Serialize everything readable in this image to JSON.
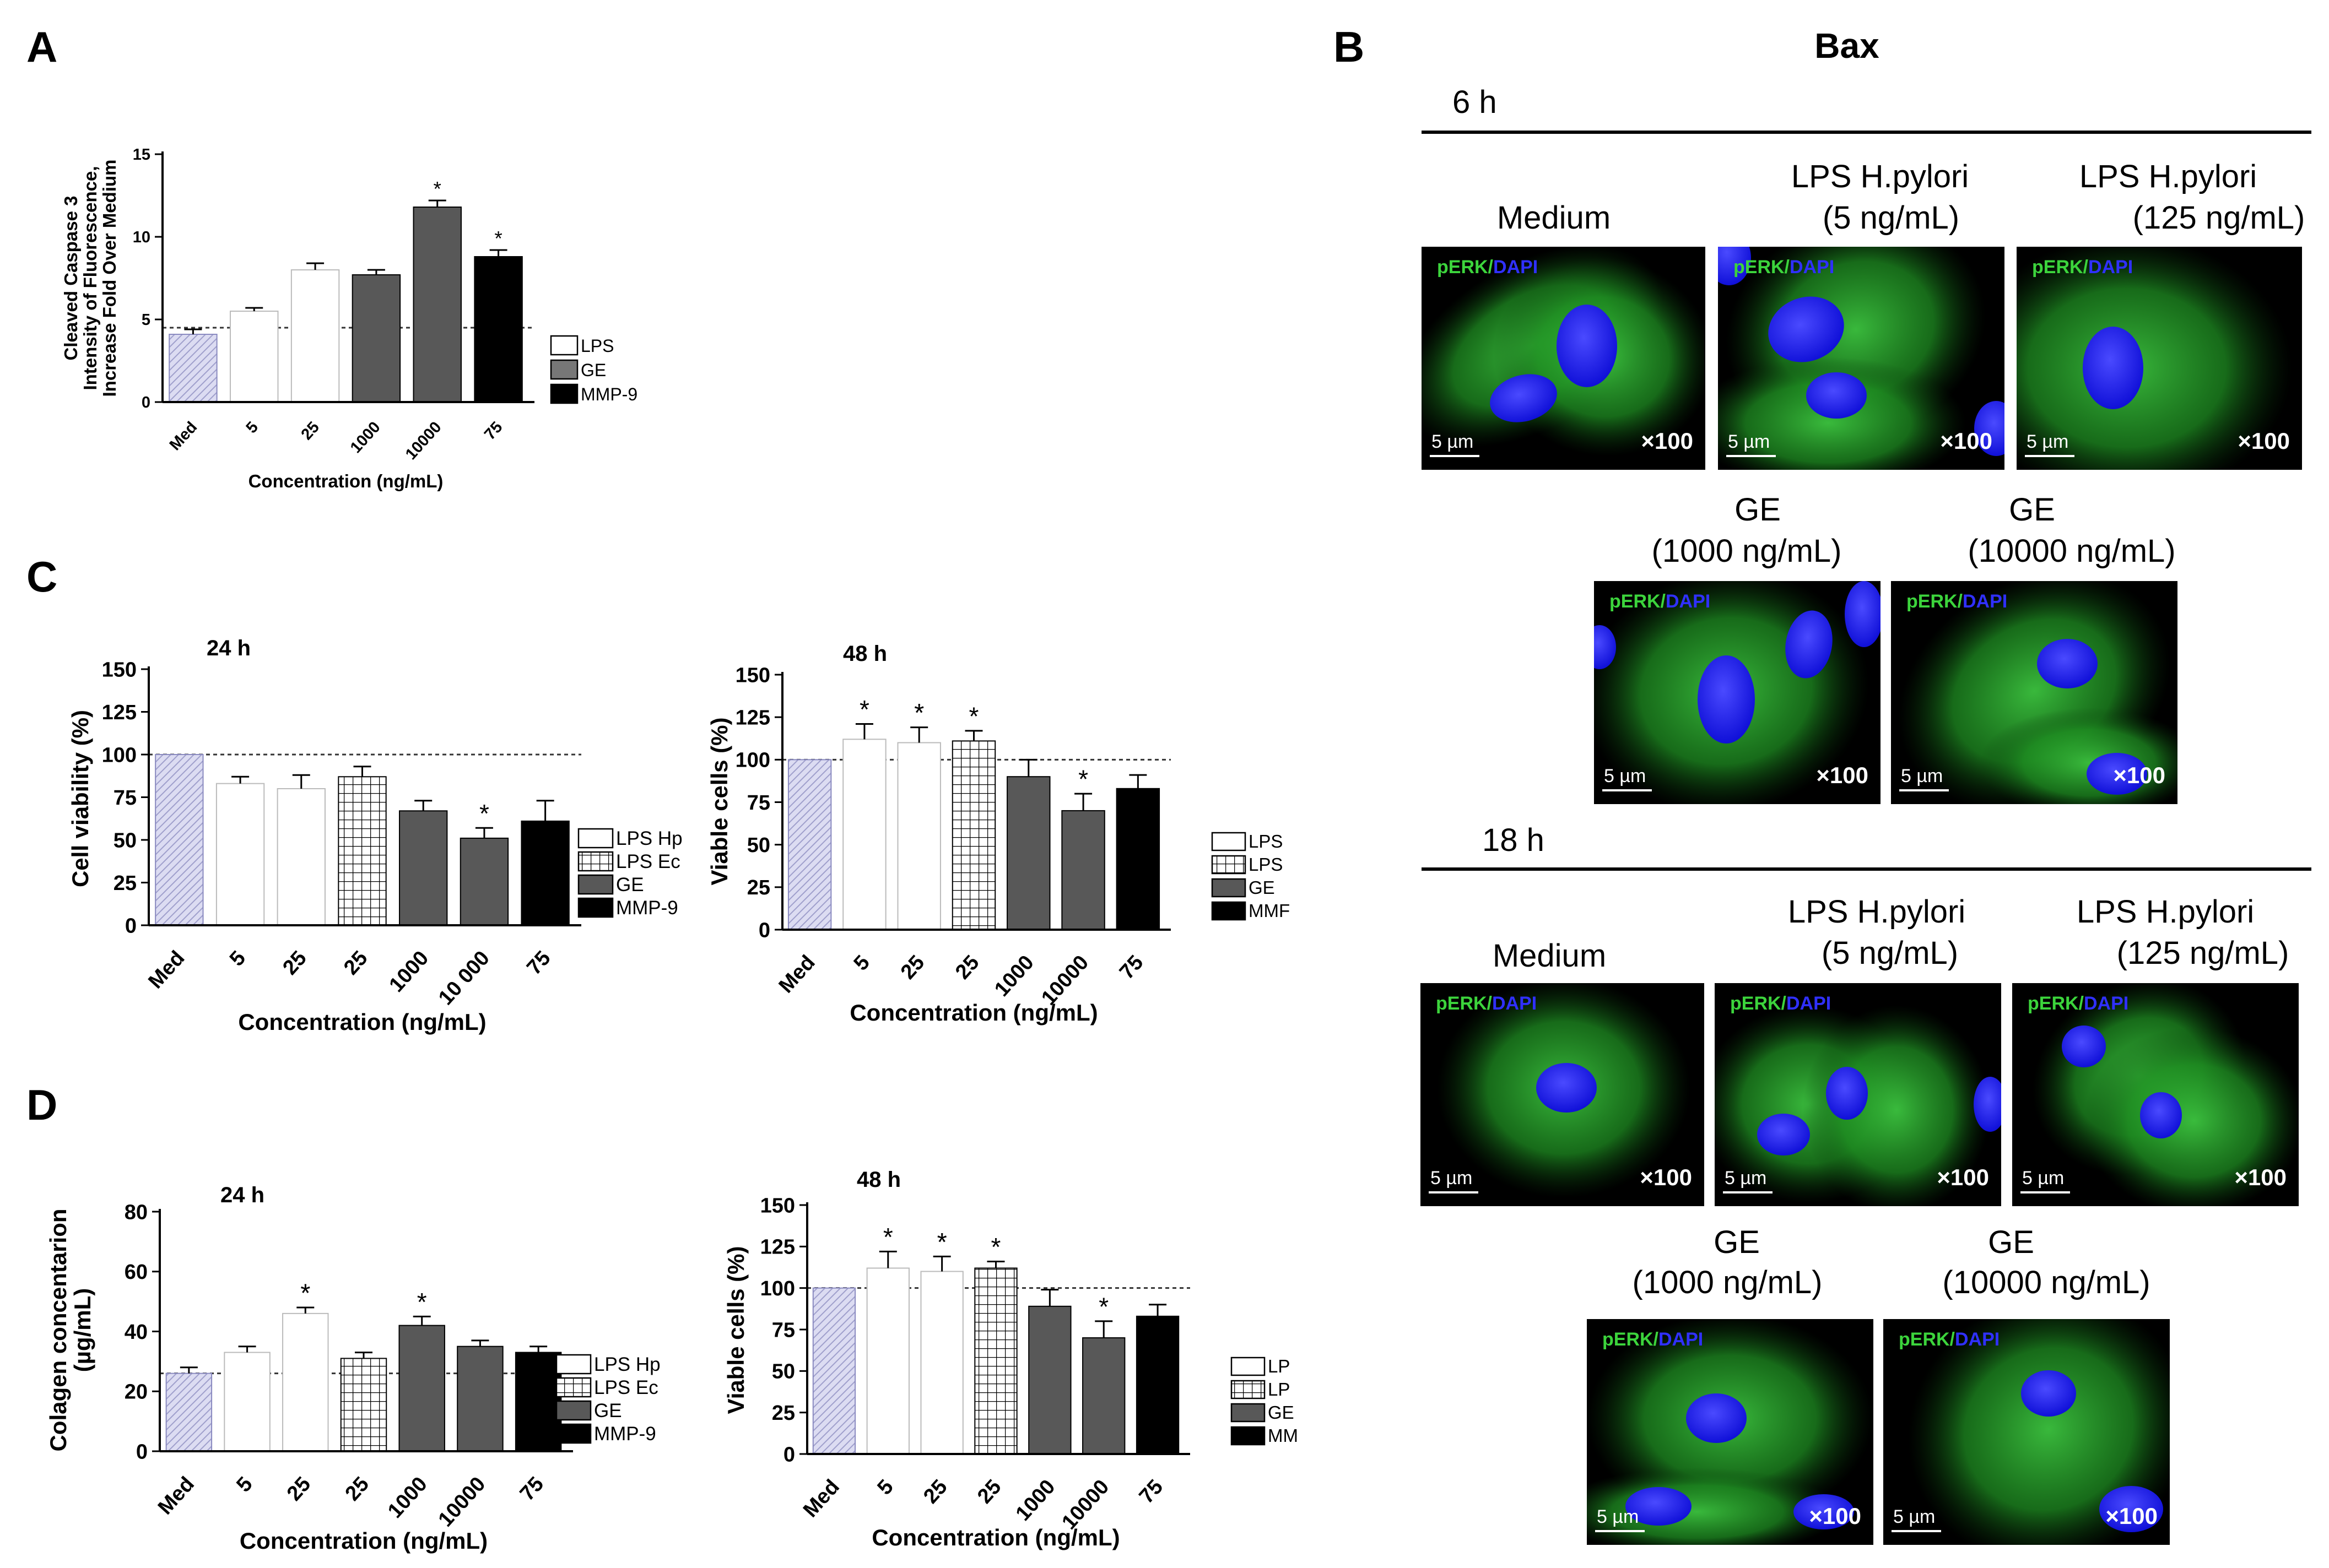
{
  "panel_letters": {
    "A": "A",
    "B": "B",
    "C": "C",
    "D": "D"
  },
  "micro": {
    "title": "Bax",
    "time_6h": "6 h",
    "time_18h": "18 h",
    "headers": {
      "medium": "Medium",
      "lps_5_l1": "LPS H.pylori",
      "lps_5_l2": "(5 ng/mL)",
      "lps_125_l1": "LPS H.pylori",
      "lps_125_l2": "(125 ng/mL)",
      "ge_1000_l1": "GE",
      "ge_1000_l2": "(1000 ng/mL)",
      "ge_10000_l1": "GE",
      "ge_10000_l2": "(10000 ng/mL)"
    },
    "stain_green": "pERK/",
    "stain_blue": "DAPI",
    "scale": "5 µm",
    "mag": "×100",
    "colors": {
      "background": "#000000",
      "cytoplasm": "#22a12a",
      "nucleus": "#1a1aff"
    }
  },
  "chart_data": [
    {
      "id": "A",
      "type": "bar",
      "ylabel_lines": [
        "Cleaved Caspase 3",
        "Intensity of Fluorescence,",
        "Increase Fold Over Medium"
      ],
      "xlabel": "Concentration (ng/mL)",
      "categories": [
        "Med",
        "5",
        "25",
        "1000",
        "10000",
        "75"
      ],
      "values": [
        4.1,
        5.5,
        8.0,
        7.7,
        11.8,
        8.8
      ],
      "errors": [
        0.3,
        0.2,
        0.4,
        0.3,
        0.4,
        0.4
      ],
      "groups": [
        "med",
        "lps",
        "lps",
        "ge",
        "ge",
        "mmp"
      ],
      "sig": [
        false,
        false,
        false,
        false,
        true,
        true
      ],
      "ylim": [
        0,
        15
      ],
      "yticks": [
        "0",
        "5",
        "10",
        "15"
      ],
      "ref_line": 4.5,
      "legend": [
        "LPS",
        "GE",
        "MMP-9"
      ]
    },
    {
      "id": "C24",
      "type": "bar",
      "title": "24 h",
      "ylabel": "Cell viability (%)",
      "xlabel": "Concentration (ng/mL)",
      "categories": [
        "Med",
        "5",
        "25",
        "25",
        "1000",
        "10 000",
        "75"
      ],
      "values": [
        100,
        83,
        80,
        87,
        67,
        51,
        61
      ],
      "errors": [
        0,
        4,
        8,
        6,
        6,
        6,
        12
      ],
      "groups": [
        "med",
        "lps",
        "lps",
        "lpsec",
        "ge",
        "ge",
        "mmp"
      ],
      "sig": [
        false,
        false,
        false,
        false,
        false,
        true,
        false
      ],
      "ylim": [
        0,
        150
      ],
      "yticks": [
        "0",
        "25",
        "50",
        "75",
        "100",
        "125",
        "150"
      ],
      "ref_line": 100,
      "legend": [
        "LPS Hp",
        "LPS Ec",
        "GE",
        "MMP-9"
      ]
    },
    {
      "id": "C48",
      "type": "bar",
      "title": "48 h",
      "ylabel": "Viable cells (%)",
      "xlabel": "Concentration (ng/mL)",
      "categories": [
        "Med",
        "5",
        "25",
        "25",
        "1000",
        "10000",
        "75"
      ],
      "values": [
        100,
        112,
        110,
        111,
        90,
        70,
        83
      ],
      "errors": [
        0,
        9,
        9,
        6,
        10,
        10,
        8
      ],
      "groups": [
        "med",
        "lps",
        "lps",
        "lpsec",
        "ge",
        "ge",
        "mmp"
      ],
      "sig": [
        false,
        true,
        true,
        true,
        false,
        true,
        false
      ],
      "sig_extra": [
        2
      ],
      "ylim": [
        0,
        150
      ],
      "yticks": [
        "0",
        "25",
        "50",
        "75",
        "100",
        "125",
        "150"
      ],
      "ref_line": 100,
      "legend": [
        "LPS",
        "LPS",
        "GE",
        "MMF"
      ]
    },
    {
      "id": "D24",
      "type": "bar",
      "title": "24 h",
      "ylabel_lines": [
        "Colagen concentarion",
        "(µg/mL)"
      ],
      "xlabel": "Concentration (ng/mL)",
      "categories": [
        "Med",
        "5",
        "25",
        "25",
        "1000",
        "10000",
        "75"
      ],
      "values": [
        26,
        33,
        46,
        31,
        42,
        35,
        33
      ],
      "errors": [
        2,
        2,
        2,
        2,
        3,
        2,
        2
      ],
      "groups": [
        "med",
        "lps",
        "lps",
        "lpsec",
        "ge",
        "ge",
        "mmp"
      ],
      "sig": [
        false,
        false,
        true,
        false,
        true,
        false,
        false
      ],
      "sig_extra": [
        2
      ],
      "ylim": [
        0,
        80
      ],
      "yticks": [
        "0",
        "20",
        "40",
        "60",
        "80"
      ],
      "ref_line": 26,
      "legend": [
        "LPS Hp",
        "LPS Ec",
        "GE",
        "MMP-9"
      ]
    },
    {
      "id": "D48",
      "type": "bar",
      "title": "48 h",
      "ylabel": "Viable cells (%)",
      "xlabel": "Concentration (ng/mL)",
      "categories": [
        "Med",
        "5",
        "25",
        "25",
        "1000",
        "10000",
        "75"
      ],
      "values": [
        100,
        112,
        110,
        112,
        89,
        70,
        83
      ],
      "errors": [
        0,
        10,
        9,
        4,
        10,
        10,
        7
      ],
      "groups": [
        "med",
        "lps",
        "lps",
        "lpsec",
        "ge",
        "ge",
        "mmp"
      ],
      "sig": [
        false,
        true,
        true,
        true,
        false,
        true,
        false
      ],
      "sig_extra": [
        2
      ],
      "ylim": [
        0,
        150
      ],
      "yticks": [
        "0",
        "25",
        "50",
        "75",
        "100",
        "125",
        "150"
      ],
      "ref_line": 100,
      "legend": [
        "LP",
        "LP",
        "GE",
        "MM"
      ]
    }
  ]
}
